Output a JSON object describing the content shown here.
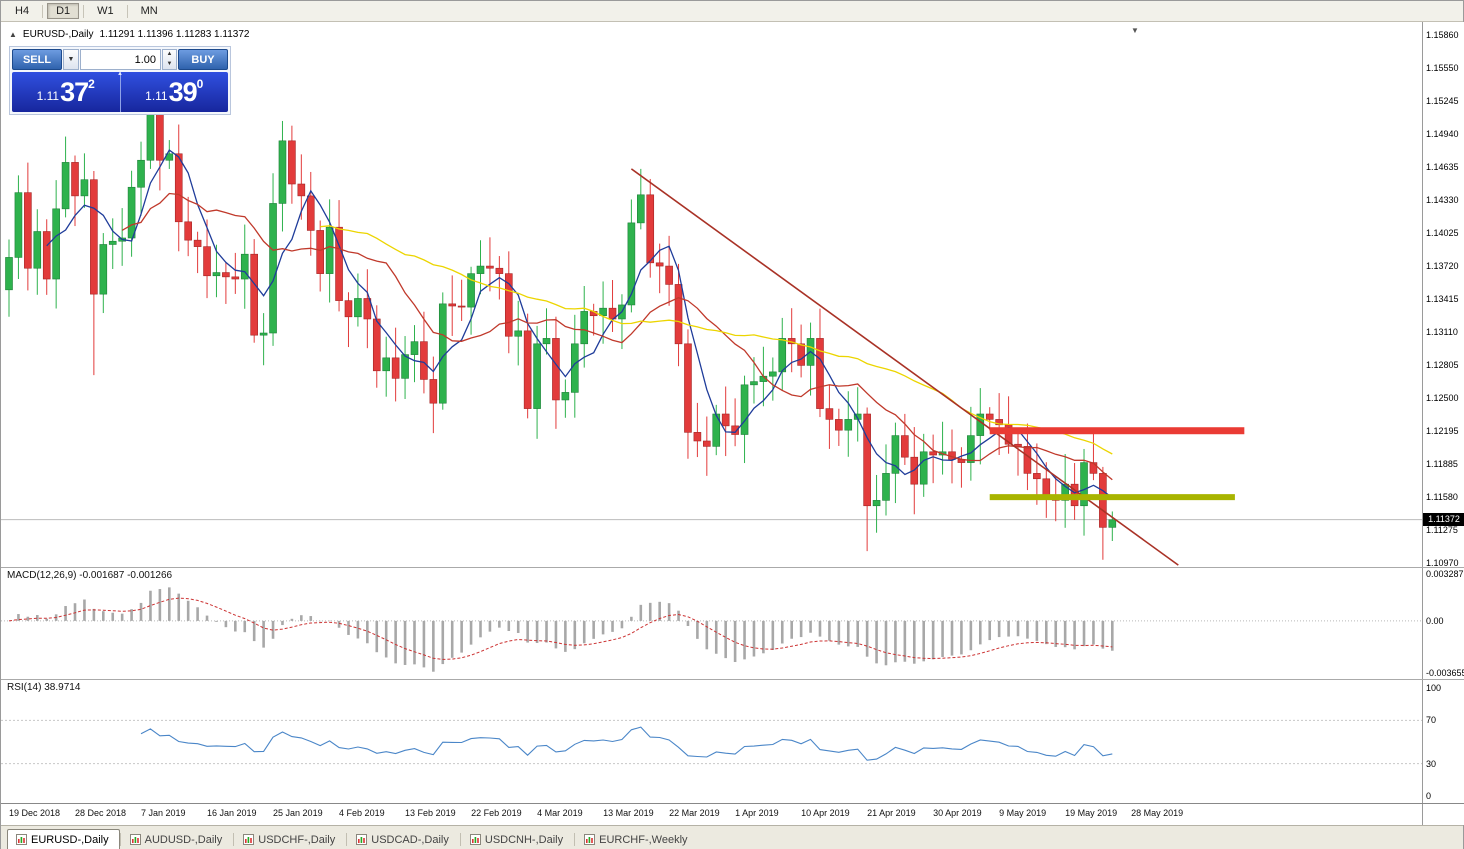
{
  "toolbar": {
    "timeframes": [
      {
        "label": "H4",
        "active": false
      },
      {
        "label": "D1",
        "active": true
      },
      {
        "label": "W1",
        "active": false
      },
      {
        "label": "MN",
        "active": false
      }
    ]
  },
  "chart": {
    "title": "EURUSD-,Daily",
    "ohlc_text": "1.11291 1.11396 1.11283 1.11372",
    "current_price": "1.11372",
    "price_axis": [
      "1.15860",
      "1.15550",
      "1.15245",
      "1.14940",
      "1.14635",
      "1.14330",
      "1.14025",
      "1.13720",
      "1.13415",
      "1.13110",
      "1.12805",
      "1.12500",
      "1.12195",
      "1.11885",
      "1.11580",
      "1.11275",
      "1.10970"
    ],
    "date_axis": [
      "19 Dec 2018",
      "28 Dec 2018",
      "7 Jan 2019",
      "16 Jan 2019",
      "25 Jan 2019",
      "4 Feb 2019",
      "13 Feb 2019",
      "22 Feb 2019",
      "4 Mar 2019",
      "13 Mar 2019",
      "22 Mar 2019",
      "1 Apr 2019",
      "10 Apr 2019",
      "21 Apr 2019",
      "30 Apr 2019",
      "9 May 2019",
      "19 May 2019",
      "28 May 2019"
    ],
    "colors": {
      "bull": "#2eb24d",
      "bear": "#e23b3b",
      "ma_fast": "#1f3c9a",
      "ma_mid": "#c0392b",
      "ma_slow": "#ecd500",
      "trendline": "#a93226",
      "resistance": "#ea3b34",
      "support": "#a8b400",
      "current_line": "#bbbbbb",
      "macd_hist": "#a8a8a8",
      "macd_signal": "#cc3333",
      "rsi_line": "#4a86c8",
      "level_dashed": "#c8c8c8"
    }
  },
  "one_click": {
    "sell_label": "SELL",
    "buy_label": "BUY",
    "volume": "1.00",
    "price_prefix": "1.11",
    "sell_big": "37",
    "sell_sup": "2",
    "buy_big": "39",
    "buy_sup": "0"
  },
  "macd": {
    "label": "MACD(12,26,9)",
    "values": "-0.001687 -0.001266",
    "axis_top": "0.003287",
    "axis_mid": "0.00",
    "axis_bottom": "-0.003655"
  },
  "rsi": {
    "label": "RSI(14)",
    "value": "38.9714",
    "axis": [
      "100",
      "70",
      "30",
      "0"
    ],
    "levels": [
      70,
      30
    ]
  },
  "tabs": [
    {
      "label": "EURUSD-,Daily",
      "active": true
    },
    {
      "label": "AUDUSD-,Daily",
      "active": false
    },
    {
      "label": "USDCHF-,Daily",
      "active": false
    },
    {
      "label": "USDCAD-,Daily",
      "active": false
    },
    {
      "label": "USDCNH-,Daily",
      "active": false
    },
    {
      "label": "EURCHF-,Weekly",
      "active": false
    }
  ],
  "chart_data": {
    "type": "candlestick",
    "symbol": "EURUSD-",
    "timeframe": "Daily",
    "ylim": [
      1.1097,
      1.1586
    ],
    "first_open": 1.135,
    "closes": [
      1.138,
      1.144,
      1.137,
      1.1404,
      1.136,
      1.1425,
      1.1468,
      1.1437,
      1.1452,
      1.1346,
      1.1392,
      1.1395,
      1.1398,
      1.1445,
      1.147,
      1.1536,
      1.147,
      1.1476,
      1.1413,
      1.1396,
      1.139,
      1.1363,
      1.1366,
      1.1362,
      1.136,
      1.1383,
      1.1308,
      1.131,
      1.143,
      1.1488,
      1.1448,
      1.1437,
      1.1405,
      1.1365,
      1.1408,
      1.134,
      1.1325,
      1.1342,
      1.1323,
      1.1275,
      1.1287,
      1.1268,
      1.129,
      1.1302,
      1.1267,
      1.1245,
      1.1337,
      1.1335,
      1.1334,
      1.1365,
      1.1372,
      1.137,
      1.1365,
      1.1307,
      1.1312,
      1.124,
      1.13,
      1.1305,
      1.1248,
      1.1255,
      1.13,
      1.133,
      1.1326,
      1.1333,
      1.1323,
      1.1336,
      1.1412,
      1.1438,
      1.1375,
      1.1372,
      1.1355,
      1.13,
      1.1218,
      1.121,
      1.1205,
      1.1235,
      1.1224,
      1.1216,
      1.1262,
      1.1265,
      1.127,
      1.1274,
      1.1305,
      1.13,
      1.128,
      1.1305,
      1.124,
      1.123,
      1.122,
      1.123,
      1.1235,
      1.115,
      1.1155,
      1.118,
      1.1215,
      1.1195,
      1.117,
      1.12,
      1.1197,
      1.12,
      1.1193,
      1.119,
      1.1215,
      1.1235,
      1.123,
      1.1225,
      1.1207,
      1.1205,
      1.118,
      1.1175,
      1.116,
      1.1155,
      1.117,
      1.115,
      1.119,
      1.118,
      1.113,
      1.1137
    ],
    "wick_overrides": {
      "9": [
        0.0008,
        0.0075
      ],
      "15": [
        0.0035,
        0.0008
      ],
      "67": [
        0.0024,
        0.0006
      ],
      "91": [
        0.0006,
        0.0042
      ],
      "116": [
        0.0006,
        0.003
      ]
    },
    "moving_averages": [
      {
        "period": 5,
        "color_key": "ma_fast"
      },
      {
        "period": 13,
        "color_key": "ma_mid"
      },
      {
        "period": 34,
        "color_key": "ma_slow"
      }
    ],
    "macd_params": [
      12,
      26,
      9
    ],
    "rsi_period": 14,
    "objects": {
      "trendline": {
        "from_bar": 66,
        "from_price": 1.1462,
        "to_bar": 124,
        "to_price": 1.1095
      },
      "resistance": {
        "price": 1.12195,
        "from_bar": 104,
        "to_bar": 131,
        "thickness": 7
      },
      "support": {
        "price": 1.1158,
        "from_bar": 104,
        "to_bar": 130,
        "thickness": 6
      }
    }
  }
}
